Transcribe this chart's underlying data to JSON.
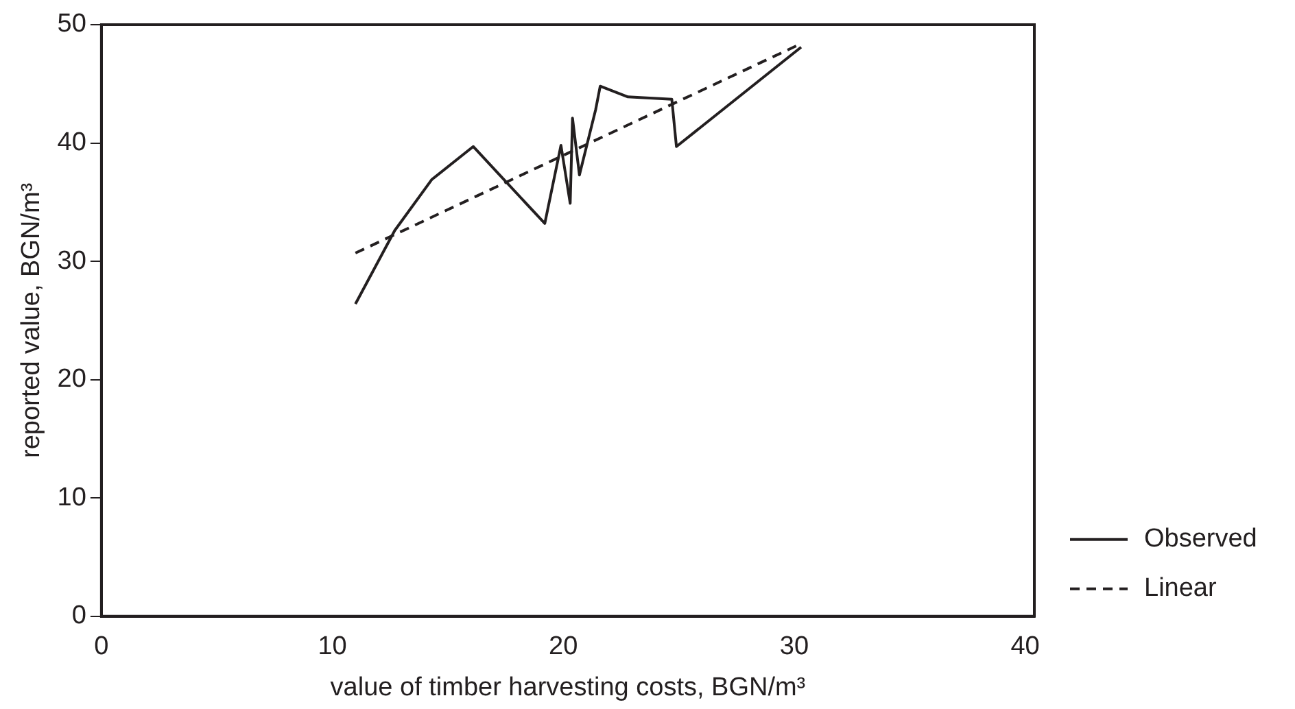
{
  "chart_data": {
    "type": "line",
    "xlabel": "value of timber harvesting costs, BGN/m³",
    "ylabel": "reported value, BGN/m³",
    "xlim": [
      0,
      40.4
    ],
    "xticks": [
      0,
      10,
      20,
      30,
      40
    ],
    "ylim": [
      0,
      50
    ],
    "yticks": [
      0,
      10,
      20,
      30,
      40,
      50
    ],
    "grid": false,
    "legend": "bottom right",
    "marker": "none",
    "series": [
      {
        "name": "Observed",
        "color": "#231f20",
        "line_style": "solid",
        "x": [
          11.0,
          12.7,
          14.3,
          16.1,
          19.2,
          19.9,
          20.3,
          20.4,
          20.7,
          21.4,
          21.6,
          22.8,
          24.7,
          24.9,
          30.3
        ],
        "values": [
          26.4,
          32.6,
          36.9,
          39.7,
          33.2,
          39.8,
          34.9,
          42.1,
          37.3,
          42.8,
          44.8,
          43.9,
          43.7,
          39.7,
          48.1
        ]
      },
      {
        "name": "Linear",
        "color": "#231f20",
        "line_style": "dashed",
        "x": [
          11.0,
          30.3
        ],
        "values": [
          30.7,
          48.4
        ]
      }
    ]
  }
}
